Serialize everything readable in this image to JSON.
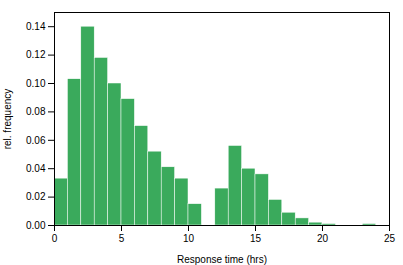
{
  "chart_data": {
    "type": "histogram",
    "bins": [
      0,
      1,
      2,
      3,
      4,
      5,
      6,
      7,
      8,
      9,
      10,
      11,
      12,
      13,
      14,
      15,
      16,
      17,
      18,
      19,
      20,
      21,
      22,
      23,
      24,
      25
    ],
    "values": [
      0.033,
      0.103,
      0.14,
      0.118,
      0.1,
      0.089,
      0.07,
      0.052,
      0.041,
      0.033,
      0.015,
      0.0,
      0.026,
      0.056,
      0.04,
      0.036,
      0.018,
      0.009,
      0.005,
      0.002,
      0.001,
      0.0,
      0.0,
      0.001,
      0.0
    ],
    "color": "#3aaa5c",
    "xlabel": "Response time (hrs)",
    "ylabel": "rel. frequency",
    "xlim": [
      0,
      25
    ],
    "ylim": [
      0,
      0.15
    ],
    "xticks": [
      0,
      5,
      10,
      15,
      20,
      25
    ],
    "yticks": [
      {
        "value": 0.0,
        "label": "0.00"
      },
      {
        "value": 0.02,
        "label": "0.02"
      },
      {
        "value": 0.04,
        "label": "0.04"
      },
      {
        "value": 0.06,
        "label": "0.06"
      },
      {
        "value": 0.08,
        "label": "0.08"
      },
      {
        "value": 0.1,
        "label": "0.10"
      },
      {
        "value": 0.12,
        "label": "0.12"
      },
      {
        "value": 0.14,
        "label": "0.14"
      }
    ]
  }
}
